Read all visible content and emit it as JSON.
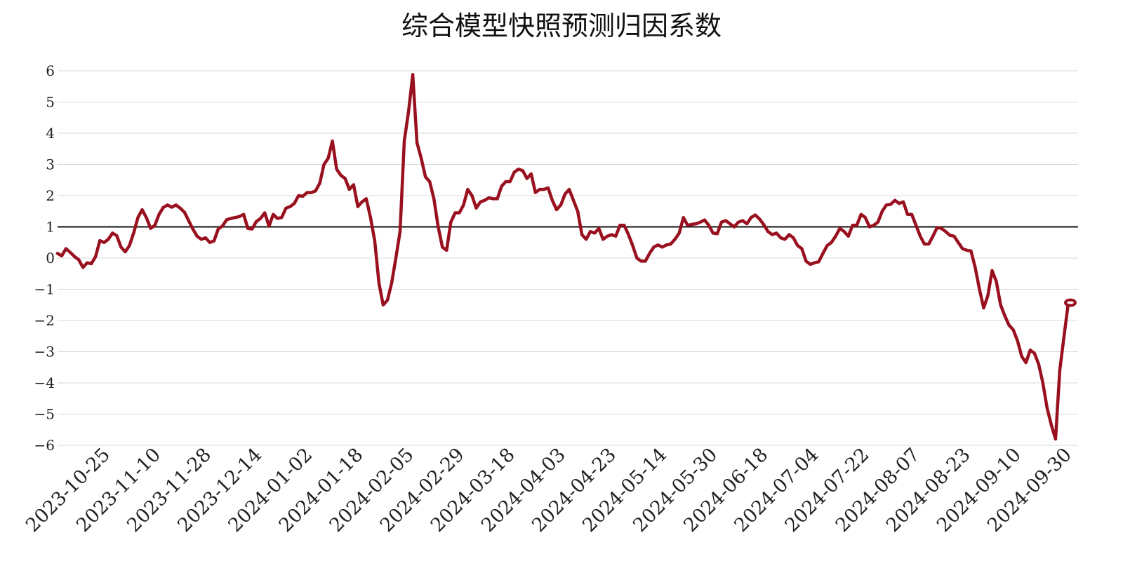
{
  "chart_data": {
    "type": "line",
    "title": "综合模型快照预测归因系数",
    "xlabel": "",
    "ylabel": "",
    "ylim": [
      -6,
      6
    ],
    "yticks": [
      6,
      5,
      4,
      3,
      2,
      1,
      0,
      -1,
      -2,
      -3,
      -4,
      -5,
      -6
    ],
    "ytick_labels": [
      "6",
      "5",
      "4",
      "3",
      "2",
      "1",
      "0",
      "−1",
      "−2",
      "−3",
      "−4",
      "−5",
      "−6"
    ],
    "xtick_labels": [
      "2023-10-25",
      "2023-11-10",
      "2023-11-28",
      "2023-12-14",
      "2024-01-02",
      "2024-01-18",
      "2024-02-05",
      "2024-02-29",
      "2024-03-18",
      "2024-04-03",
      "2024-04-23",
      "2024-05-14",
      "2024-05-30",
      "2024-06-18",
      "2024-07-04",
      "2024-07-22",
      "2024-08-07",
      "2024-08-23",
      "2024-09-10",
      "2024-09-30"
    ],
    "reference_line": 1,
    "grid": true,
    "line_color": "#99101f",
    "reference_color": "#111111",
    "series": [
      {
        "values": [
          0.15,
          0.07,
          0.3,
          0.18,
          0.05,
          -0.05,
          -0.3,
          -0.15,
          -0.18,
          0.05,
          0.56,
          0.5,
          0.6,
          0.8,
          0.72,
          0.35,
          0.2,
          0.4,
          0.8,
          1.3,
          1.55,
          1.3,
          0.95,
          1.05,
          1.4,
          1.62,
          1.7,
          1.63,
          1.7,
          1.6,
          1.47,
          1.2,
          0.93,
          0.7,
          0.6,
          0.65,
          0.5,
          0.55,
          0.93,
          1.03,
          1.23,
          1.27,
          1.3,
          1.33,
          1.4,
          0.95,
          0.93,
          1.17,
          1.27,
          1.45,
          1.02,
          1.4,
          1.27,
          1.3,
          1.6,
          1.65,
          1.75,
          2.0,
          1.98,
          2.1,
          2.1,
          2.15,
          2.4,
          3.0,
          3.2,
          3.75,
          2.85,
          2.65,
          2.55,
          2.2,
          2.35,
          1.65,
          1.8,
          1.9,
          1.3,
          0.55,
          -0.8,
          -1.5,
          -1.35,
          -0.8,
          0.0,
          0.85,
          3.75,
          4.7,
          5.88,
          3.7,
          3.2,
          2.6,
          2.45,
          1.9,
          1.0,
          0.35,
          0.25,
          1.15,
          1.45,
          1.45,
          1.7,
          2.2,
          2.0,
          1.6,
          1.8,
          1.85,
          1.93,
          1.9,
          1.9,
          2.3,
          2.45,
          2.45,
          2.75,
          2.85,
          2.8,
          2.55,
          2.7,
          2.1,
          2.2,
          2.2,
          2.25,
          1.85,
          1.55,
          1.7,
          2.05,
          2.2,
          1.85,
          1.5,
          0.75,
          0.6,
          0.85,
          0.8,
          0.95,
          0.6,
          0.7,
          0.75,
          0.7,
          1.05,
          1.05,
          0.75,
          0.4,
          0.0,
          -0.1,
          -0.1,
          0.15,
          0.35,
          0.42,
          0.35,
          0.42,
          0.45,
          0.6,
          0.8,
          1.3,
          1.05,
          1.08,
          1.1,
          1.15,
          1.22,
          1.05,
          0.8,
          0.78,
          1.15,
          1.2,
          1.1,
          1.0,
          1.15,
          1.2,
          1.1,
          1.3,
          1.38,
          1.25,
          1.07,
          0.85,
          0.75,
          0.8,
          0.65,
          0.6,
          0.75,
          0.65,
          0.4,
          0.3,
          -0.1,
          -0.2,
          -0.15,
          -0.12,
          0.15,
          0.4,
          0.5,
          0.7,
          0.95,
          0.85,
          0.7,
          1.05,
          1.05,
          1.4,
          1.3,
          1.0,
          1.05,
          1.15,
          1.5,
          1.7,
          1.72,
          1.85,
          1.75,
          1.8,
          1.4,
          1.4,
          1.05,
          0.7,
          0.45,
          0.45,
          0.7,
          0.98,
          0.95,
          0.85,
          0.73,
          0.7,
          0.5,
          0.3,
          0.25,
          0.23,
          -0.3,
          -1.0,
          -1.6,
          -1.2,
          -0.4,
          -0.75,
          -1.5,
          -1.85,
          -2.15,
          -2.3,
          -2.65,
          -3.15,
          -3.35,
          -2.95,
          -3.05,
          -3.4,
          -4.0,
          -4.8,
          -5.35,
          -5.8,
          -3.6,
          -2.5,
          -1.45,
          -1.43
        ]
      }
    ]
  }
}
